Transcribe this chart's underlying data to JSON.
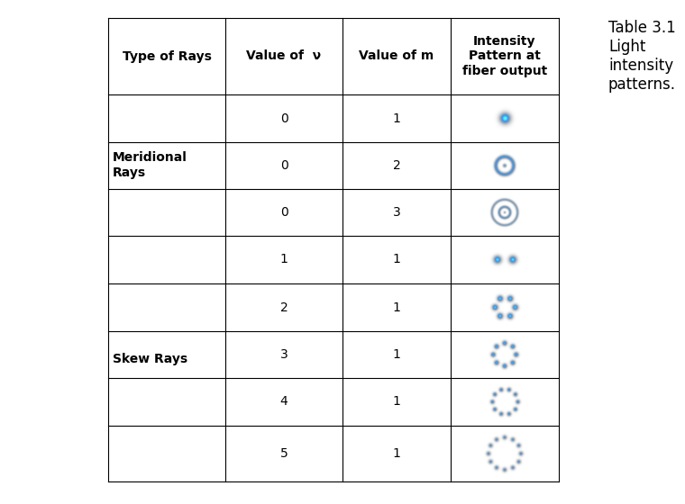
{
  "col_headers": [
    "Type of Rays",
    "Value of  ν",
    "Value of m",
    "Intensity\nPattern at\nfiber output"
  ],
  "rows": [
    {
      "type_label": "Meridional\nRays",
      "nu": "0",
      "m": "1",
      "pattern": "meridional_1",
      "merge_start": true,
      "merge_group": 0
    },
    {
      "type_label": "",
      "nu": "0",
      "m": "2",
      "pattern": "meridional_2",
      "merge_start": false,
      "merge_group": 0
    },
    {
      "type_label": "",
      "nu": "0",
      "m": "3",
      "pattern": "meridional_3",
      "merge_start": false,
      "merge_group": 0
    },
    {
      "type_label": "Skew Rays",
      "nu": "1",
      "m": "1",
      "pattern": "skew_1_1",
      "merge_start": true,
      "merge_group": 1
    },
    {
      "type_label": "",
      "nu": "2",
      "m": "1",
      "pattern": "skew_2_1",
      "merge_start": false,
      "merge_group": 1
    },
    {
      "type_label": "",
      "nu": "3",
      "m": "1",
      "pattern": "skew_3_1",
      "merge_start": false,
      "merge_group": 1
    },
    {
      "type_label": "",
      "nu": "4",
      "m": "1",
      "pattern": "skew_4_1",
      "merge_start": false,
      "merge_group": 1
    },
    {
      "type_label": "",
      "nu": "5",
      "m": "1",
      "pattern": "skew_5_1",
      "merge_start": false,
      "merge_group": 1
    }
  ],
  "merge_groups": [
    {
      "rows": [
        0,
        1,
        2
      ],
      "label": "Meridional\nRays"
    },
    {
      "rows": [
        3,
        4,
        5,
        6,
        7
      ],
      "label": "Skew Rays"
    }
  ],
  "dot_color": [
    0.2,
    0.6,
    1.0
  ],
  "side_text": "Table 3.1\nLight\nintensity\npatterns.",
  "side_text_fontsize": 12,
  "header_fontsize": 10,
  "cell_fontsize": 10,
  "bg_color": "white",
  "border_color": "black",
  "lw": 0.8
}
